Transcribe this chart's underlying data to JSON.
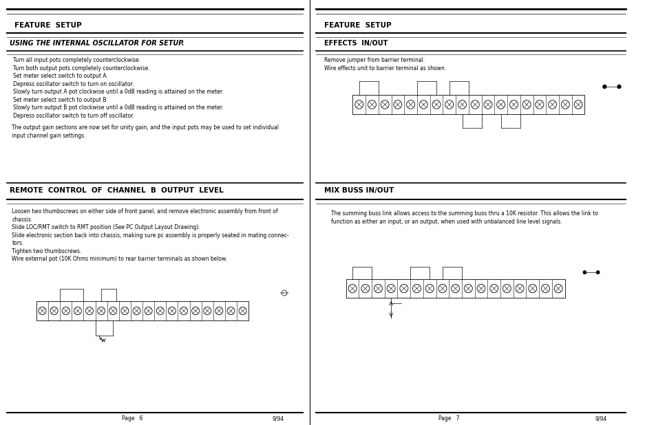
{
  "bg_color": "#ffffff",
  "text_color": "#000000",
  "page_width": 9.54,
  "page_height": 6.18,
  "left_panel": {
    "feature_setup_title": "FEATURE  SETUP",
    "section1_title": "USING THE INTERNAL OSCILLATOR FOR SETUP.",
    "section1_body": [
      "Turn all input pots completely counterclockwise.",
      "Turn both output pots completely counterclockwise.",
      "Set meter select switch to output A.",
      "Depress oscillator switch to turn on oscillator.",
      "Slowly turn output A pot clockwise until a 0dB reading is attained on the meter.",
      "Set meter select switch to output B.",
      "Slowly turn output B pot clockwise until a 0dB reading is attained on the meter.",
      "Depress oscillator switch to turn off oscillator."
    ],
    "section1_extra": "The output gain sections are now set for unity gain, and the input pots may be used to set individual\ninput channel gain settings.",
    "section2_title": "REMOTE  CONTROL  OF  CHANNEL  B  OUTPUT  LEVEL",
    "section2_body": [
      "Loosen two thumbscrews on either side of front panel, and remove electronic assembly from front of",
      "chassis.",
      "Slide LOC/RMT switch to RMT position (See PC Output Layout Drawing).",
      "Slide electronic section back into chassis, making sure pc assembly is properly seated in mating connec-",
      "tors.",
      "Tighten two thumbscrews.",
      "Wire external pot (10K Ohms minimum) to rear barrier terminals as shown below."
    ],
    "page_num": "Page   6",
    "page_date": "9/94"
  },
  "right_panel": {
    "feature_setup_title": "FEATURE  SETUP",
    "section1_title": "EFFECTS  IN/OUT",
    "section1_body": [
      "Remove jumper from barrier terminal.",
      "Wire effects unit to barrier terminal as shown."
    ],
    "section2_title": "MIX BUSS IN/OUT",
    "section2_body": [
      "The summing buss link allows access to the summing buss thru a 10K resistor. This allows the link to",
      "function as either an input, or an output, when used with unbalanced line level signals."
    ],
    "page_num": "Page   7",
    "page_date": "9/94"
  }
}
